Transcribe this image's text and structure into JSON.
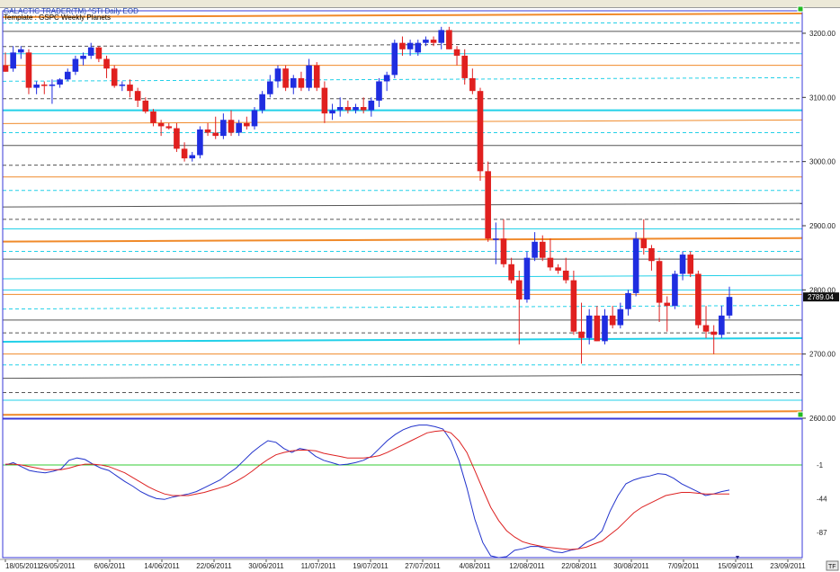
{
  "header": {
    "title": "GALACTIC TRADER(TM)    ^STI Daily  EOD",
    "template": "Template : GSPC Weekly Planets"
  },
  "price_badge": "2789.04",
  "tf_label": "TF",
  "colors": {
    "up": "#1f2de0",
    "down": "#e0201f",
    "orange": "#f08a2a",
    "cyan": "#22d0e8",
    "grid_dark": "#555555",
    "macd": "#2233cc",
    "signal": "#dd2222",
    "zero": "#33cc33"
  },
  "chart_data": [
    {
      "type": "candlestick",
      "title": "^STI Daily EOD",
      "ylim": [
        2600,
        3235
      ],
      "yticks": [
        "3200.00",
        "3100.00",
        "3000.00",
        "2900.00",
        "2800.00",
        "2700.00",
        "2600.00"
      ],
      "xticks": [
        "18/05/2011",
        "26/05/2011",
        "6/06/2011",
        "14/06/2011",
        "22/06/2011",
        "30/06/2011",
        "11/07/2011",
        "19/07/2011",
        "27/07/2011",
        "4/08/2011",
        "12/08/2011",
        "22/08/2011",
        "30/08/2011",
        "7/09/2011",
        "15/09/2011",
        "23/09/2011"
      ],
      "ohlc": [
        [
          3150,
          3170,
          3140,
          3140
        ],
        [
          3145,
          3180,
          3140,
          3170
        ],
        [
          3170,
          3180,
          3160,
          3175
        ],
        [
          3170,
          3175,
          3105,
          3115
        ],
        [
          3115,
          3125,
          3105,
          3120
        ],
        [
          3120,
          3125,
          3105,
          3118
        ],
        [
          3118,
          3128,
          3090,
          3120
        ],
        [
          3120,
          3130,
          3115,
          3128
        ],
        [
          3128,
          3145,
          3125,
          3140
        ],
        [
          3140,
          3165,
          3135,
          3160
        ],
        [
          3160,
          3170,
          3150,
          3165
        ],
        [
          3165,
          3185,
          3160,
          3178
        ],
        [
          3178,
          3180,
          3155,
          3160
        ],
        [
          3160,
          3165,
          3130,
          3145
        ],
        [
          3145,
          3150,
          3115,
          3118
        ],
        [
          3118,
          3125,
          3110,
          3120
        ],
        [
          3120,
          3128,
          3100,
          3110
        ],
        [
          3110,
          3115,
          3085,
          3095
        ],
        [
          3095,
          3100,
          3075,
          3078
        ],
        [
          3078,
          3082,
          3055,
          3060
        ],
        [
          3060,
          3065,
          3040,
          3055
        ],
        [
          3055,
          3060,
          3050,
          3052
        ],
        [
          3052,
          3060,
          3015,
          3020
        ],
        [
          3020,
          3030,
          3000,
          3005
        ],
        [
          3005,
          3015,
          3000,
          3010
        ],
        [
          3010,
          3055,
          3005,
          3050
        ],
        [
          3050,
          3060,
          3040,
          3045
        ],
        [
          3045,
          3070,
          3035,
          3040
        ],
        [
          3040,
          3075,
          3035,
          3065
        ],
        [
          3065,
          3080,
          3040,
          3045
        ],
        [
          3045,
          3065,
          3040,
          3060
        ],
        [
          3060,
          3070,
          3050,
          3055
        ],
        [
          3055,
          3085,
          3050,
          3080
        ],
        [
          3080,
          3110,
          3075,
          3105
        ],
        [
          3105,
          3135,
          3100,
          3125
        ],
        [
          3125,
          3150,
          3115,
          3145
        ],
        [
          3145,
          3150,
          3110,
          3115
        ],
        [
          3115,
          3135,
          3105,
          3130
        ],
        [
          3130,
          3140,
          3110,
          3115
        ],
        [
          3115,
          3160,
          3110,
          3150
        ],
        [
          3150,
          3155,
          3110,
          3115
        ],
        [
          3115,
          3125,
          3060,
          3075
        ],
        [
          3075,
          3090,
          3065,
          3080
        ],
        [
          3080,
          3100,
          3070,
          3085
        ],
        [
          3085,
          3095,
          3075,
          3080
        ],
        [
          3080,
          3090,
          3075,
          3085
        ],
        [
          3085,
          3100,
          3075,
          3080
        ],
        [
          3080,
          3100,
          3070,
          3095
        ],
        [
          3095,
          3130,
          3085,
          3125
        ],
        [
          3125,
          3140,
          3110,
          3135
        ],
        [
          3135,
          3190,
          3130,
          3185
        ],
        [
          3185,
          3195,
          3165,
          3175
        ],
        [
          3175,
          3190,
          3165,
          3185
        ],
        [
          3170,
          3190,
          3165,
          3185
        ],
        [
          3185,
          3195,
          3180,
          3190
        ],
        [
          3190,
          3195,
          3180,
          3185
        ],
        [
          3185,
          3210,
          3175,
          3205
        ],
        [
          3205,
          3210,
          3175,
          3175
        ],
        [
          3175,
          3180,
          3150,
          3165
        ],
        [
          3165,
          3175,
          3120,
          3130
        ],
        [
          3130,
          3145,
          3105,
          3110
        ],
        [
          3110,
          3115,
          2970,
          2985
        ],
        [
          2985,
          3000,
          2875,
          2880
        ],
        [
          2880,
          2905,
          2840,
          2880
        ],
        [
          2880,
          2910,
          2835,
          2840
        ],
        [
          2840,
          2850,
          2810,
          2815
        ],
        [
          2815,
          2830,
          2715,
          2785
        ],
        [
          2785,
          2860,
          2780,
          2850
        ],
        [
          2850,
          2890,
          2845,
          2875
        ],
        [
          2875,
          2885,
          2845,
          2850
        ],
        [
          2850,
          2880,
          2830,
          2835
        ],
        [
          2835,
          2840,
          2825,
          2830
        ],
        [
          2830,
          2850,
          2810,
          2815
        ],
        [
          2815,
          2830,
          2730,
          2735
        ],
        [
          2735,
          2780,
          2685,
          2725
        ],
        [
          2725,
          2770,
          2715,
          2760
        ],
        [
          2760,
          2775,
          2720,
          2720
        ],
        [
          2720,
          2770,
          2715,
          2760
        ],
        [
          2760,
          2775,
          2740,
          2745
        ],
        [
          2745,
          2780,
          2740,
          2770
        ],
        [
          2770,
          2800,
          2760,
          2795
        ],
        [
          2795,
          2890,
          2790,
          2880
        ],
        [
          2880,
          2910,
          2855,
          2865
        ],
        [
          2865,
          2870,
          2830,
          2845
        ],
        [
          2845,
          2850,
          2750,
          2780
        ],
        [
          2780,
          2790,
          2735,
          2775
        ],
        [
          2775,
          2830,
          2770,
          2825
        ],
        [
          2825,
          2860,
          2815,
          2855
        ],
        [
          2855,
          2860,
          2820,
          2825
        ],
        [
          2825,
          2830,
          2740,
          2745
        ],
        [
          2745,
          2775,
          2725,
          2735
        ],
        [
          2735,
          2745,
          2700,
          2730
        ],
        [
          2730,
          2775,
          2725,
          2760
        ],
        [
          2760,
          2805,
          2755,
          2789
        ]
      ],
      "levels": [
        {
          "price": 3228,
          "color": "orange",
          "style": "solid",
          "width": 2
        },
        {
          "price": 3216,
          "color": "cyan",
          "style": "dash"
        },
        {
          "price": 3203,
          "color": "grid_dark",
          "style": "solid"
        },
        {
          "price": 3182,
          "color": "grid_dark",
          "style": "dash"
        },
        {
          "price": 3168,
          "color": "cyan",
          "style": "solid"
        },
        {
          "price": 3150,
          "color": "orange",
          "style": "solid"
        },
        {
          "price": 3128,
          "color": "cyan",
          "style": "dash"
        },
        {
          "price": 3098,
          "color": "grid_dark",
          "style": "dash"
        },
        {
          "price": 3080,
          "color": "cyan",
          "style": "solid",
          "width": 2
        },
        {
          "price": 3062,
          "color": "orange",
          "style": "solid"
        },
        {
          "price": 3045,
          "color": "cyan",
          "style": "dash"
        },
        {
          "price": 3025,
          "color": "grid_dark",
          "style": "solid"
        },
        {
          "price": 2997,
          "color": "grid_dark",
          "style": "dash"
        },
        {
          "price": 2976,
          "color": "orange",
          "style": "solid"
        },
        {
          "price": 2955,
          "color": "cyan",
          "style": "dash"
        },
        {
          "price": 2932,
          "color": "grid_dark",
          "style": "solid"
        },
        {
          "price": 2910,
          "color": "grid_dark",
          "style": "dash"
        },
        {
          "price": 2895,
          "color": "cyan",
          "style": "solid"
        },
        {
          "price": 2878,
          "color": "orange",
          "style": "solid",
          "width": 2
        },
        {
          "price": 2860,
          "color": "cyan",
          "style": "dash"
        },
        {
          "price": 2848,
          "color": "grid_dark",
          "style": "solid"
        },
        {
          "price": 2820,
          "color": "cyan",
          "style": "solid"
        },
        {
          "price": 2800,
          "color": "cyan",
          "style": "solid"
        },
        {
          "price": 2793,
          "color": "orange",
          "style": "solid"
        },
        {
          "price": 2773,
          "color": "cyan",
          "style": "dash"
        },
        {
          "price": 2753,
          "color": "grid_dark",
          "style": "solid"
        },
        {
          "price": 2733,
          "color": "grid_dark",
          "style": "dash"
        },
        {
          "price": 2722,
          "color": "cyan",
          "style": "solid",
          "width": 2
        },
        {
          "price": 2700,
          "color": "orange",
          "style": "solid"
        },
        {
          "price": 2683,
          "color": "cyan",
          "style": "dash"
        },
        {
          "price": 2665,
          "color": "grid_dark",
          "style": "solid"
        },
        {
          "price": 2640,
          "color": "grid_dark",
          "style": "dash"
        },
        {
          "price": 2628,
          "color": "cyan",
          "style": "solid"
        },
        {
          "price": 2608,
          "color": "orange",
          "style": "solid",
          "width": 2
        }
      ]
    },
    {
      "type": "line",
      "yticks": [
        "-1",
        "-44",
        "-87"
      ],
      "ylim": [
        -117,
        53
      ],
      "zero": -1,
      "series": [
        {
          "name": "",
          "color": "macd",
          "values": [
            -1,
            2,
            -3,
            -8,
            -10,
            -11,
            -9,
            -6,
            5,
            8,
            6,
            0,
            -5,
            -8,
            -15,
            -22,
            -28,
            -35,
            -40,
            -44,
            -45,
            -42,
            -40,
            -38,
            -35,
            -30,
            -25,
            -20,
            -12,
            -5,
            5,
            15,
            23,
            30,
            28,
            20,
            15,
            20,
            18,
            10,
            5,
            2,
            -1,
            0,
            2,
            5,
            10,
            20,
            30,
            38,
            44,
            48,
            50,
            50,
            48,
            45,
            30,
            5,
            -30,
            -70,
            -100,
            -117,
            -120,
            -118,
            -110,
            -108,
            -105,
            -105,
            -108,
            -112,
            -113,
            -110,
            -108,
            -100,
            -95,
            -85,
            -60,
            -40,
            -25,
            -20,
            -17,
            -15,
            -12,
            -13,
            -18,
            -25,
            -30,
            -35,
            -40,
            -38,
            -35,
            -33
          ]
        },
        {
          "name": "",
          "color": "signal",
          "values": [
            0,
            0,
            -1,
            -3,
            -5,
            -7,
            -7,
            -7,
            -5,
            -2,
            0,
            0,
            -1,
            -3,
            -7,
            -11,
            -17,
            -23,
            -29,
            -34,
            -38,
            -40,
            -40,
            -40,
            -38,
            -36,
            -33,
            -30,
            -27,
            -22,
            -16,
            -9,
            -1,
            6,
            12,
            15,
            17,
            18,
            18,
            17,
            14,
            12,
            10,
            8,
            8,
            8,
            9,
            11,
            15,
            20,
            25,
            30,
            35,
            40,
            42,
            43,
            40,
            30,
            15,
            -8,
            -32,
            -55,
            -72,
            -85,
            -93,
            -99,
            -102,
            -104,
            -106,
            -107,
            -108,
            -109,
            -108,
            -106,
            -102,
            -98,
            -90,
            -82,
            -72,
            -62,
            -55,
            -50,
            -45,
            -40,
            -38,
            -36,
            -36,
            -37,
            -38,
            -38,
            -38,
            -38
          ]
        }
      ]
    }
  ]
}
